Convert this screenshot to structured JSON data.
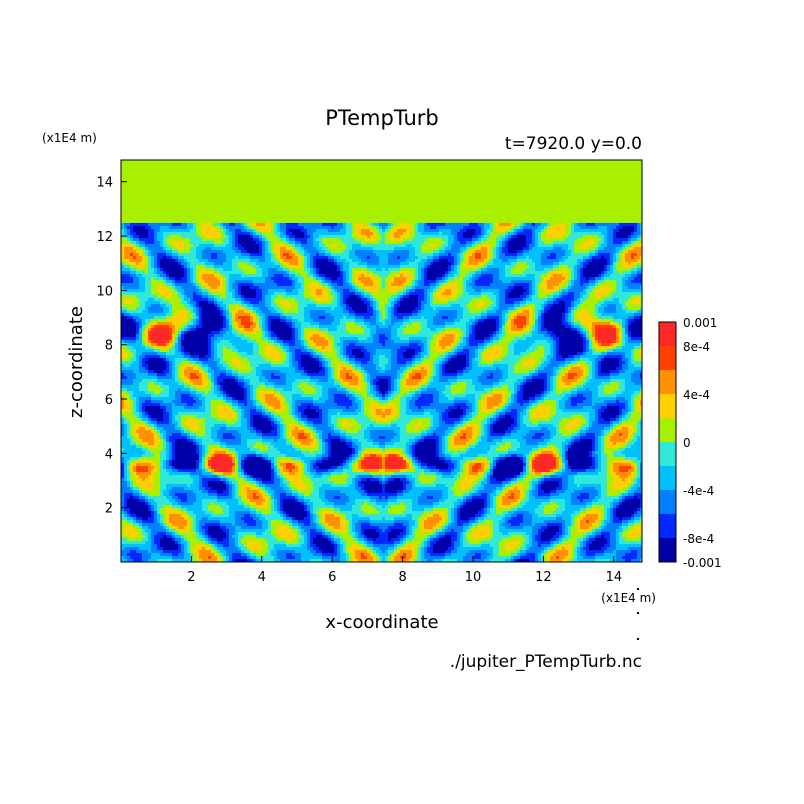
{
  "chart_data": {
    "type": "heatmap",
    "title": "PTempTurb",
    "subtitle": "t=7920.0 y=0.0",
    "xlabel": "x-coordinate",
    "ylabel": "z-coordinate",
    "x_unit": "(x1E4 m)",
    "y_unit": "(x1E4 m)",
    "source_file": "./jupiter_PTempTurb.nc",
    "xlim": [
      0,
      14.8
    ],
    "ylim": [
      0,
      14.8
    ],
    "x_ticks": [
      2,
      4,
      6,
      8,
      10,
      12,
      14
    ],
    "y_ticks": [
      2,
      4,
      6,
      8,
      10,
      12,
      14
    ],
    "x_tick_labels": [
      "2",
      "4",
      "6",
      "8",
      "10",
      "12",
      "14"
    ],
    "y_tick_labels": [
      "2",
      "4",
      "6",
      "8",
      "10",
      "12",
      "14"
    ],
    "colorbar": {
      "labels": [
        "0.001",
        "8e-4",
        "4e-4",
        "0",
        "-4e-4",
        "-8e-4",
        "-0.001"
      ],
      "levels": [
        -0.001,
        -0.0008,
        -0.0006,
        -0.0004,
        -0.0002,
        0,
        0.0002,
        0.0004,
        0.0006,
        0.0008,
        0.001
      ],
      "colors": [
        "#0000a8",
        "#0028ff",
        "#0080ff",
        "#00c0ff",
        "#30e8d8",
        "#a8f000",
        "#ffd000",
        "#ff9000",
        "#ff4000",
        "#ff2828"
      ]
    },
    "background_value": 0,
    "background_color": "#a8f000",
    "field_top_z": 12.4
  }
}
